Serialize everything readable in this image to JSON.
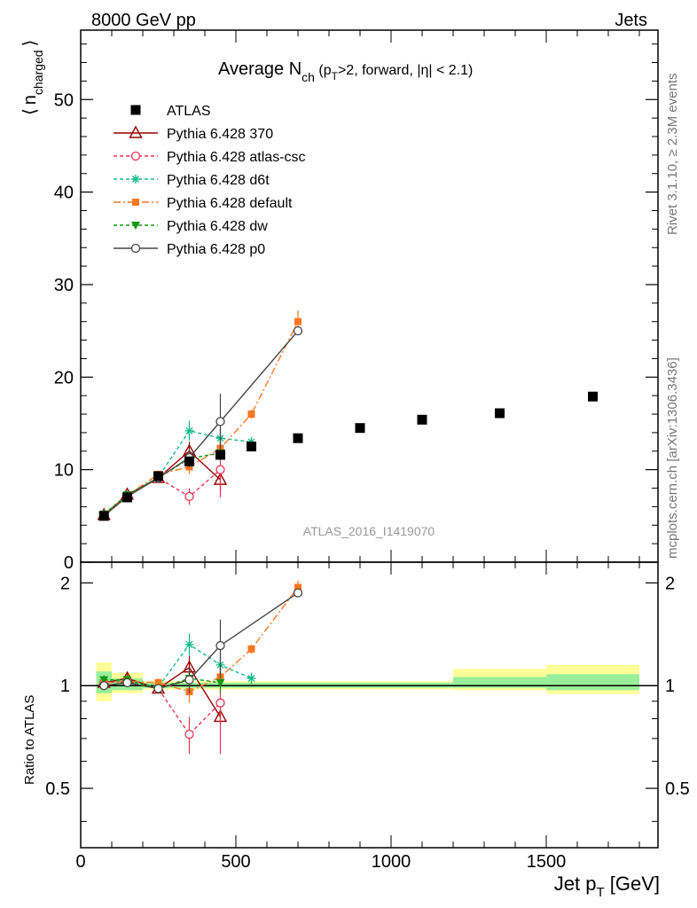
{
  "header": {
    "left": "8000 GeV pp",
    "right": "Jets"
  },
  "side_labels": {
    "rivet": "Rivet 3.1.10, ≥ 2.3M events",
    "mcplots": "mcplots.cern.ch [arXiv:1306.3436]"
  },
  "watermark": "ATLAS_2016_I1419070",
  "chart_data": [
    {
      "type": "scatter",
      "panel": "main",
      "title": "Average N_ch (p_T>2, forward, |η| < 2.1)",
      "title_parts": {
        "a": "Average N",
        "sub_ch": "ch",
        "b": " (p",
        "sub_T": "T",
        "c": ">2, forward, |η| < 2.1)"
      },
      "ylabel": "⟨ n_charged ⟩",
      "ylabel_parts": {
        "open": "⟨",
        "n": "n",
        "sub": "charged",
        "close": "⟩"
      },
      "xlabel": "Jet p_T [GeV]",
      "xlim": [
        0,
        1860
      ],
      "ylim": [
        0,
        57.5
      ],
      "x_ticks": [
        0,
        500,
        1000,
        1500
      ],
      "y_ticks": [
        0,
        10,
        20,
        30,
        40,
        50
      ],
      "legend_position": "top-left",
      "data": {
        "name": "ATLAS",
        "x": [
          75,
          150,
          250,
          350,
          450,
          550,
          700,
          900,
          1100,
          1350,
          1650
        ],
        "y": [
          5.0,
          7.0,
          9.3,
          10.9,
          11.6,
          12.5,
          13.4,
          14.5,
          15.4,
          16.1,
          17.9
        ],
        "color": "#000000"
      },
      "series": [
        {
          "name": "Pythia 6.428 370",
          "color": "#990000",
          "dash": "",
          "marker": "triangle-open",
          "x": [
            75,
            150,
            250,
            350,
            450
          ],
          "y": [
            5.1,
            7.3,
            9.1,
            12.0,
            8.9
          ],
          "err": [
            0.2,
            0.2,
            0.3,
            1.0,
            1.2
          ]
        },
        {
          "name": "Pythia 6.428 atlas-csc",
          "color": "#ee3355",
          "dash": "4,3",
          "marker": "circle-open",
          "x": [
            75,
            150,
            250,
            350,
            450
          ],
          "y": [
            5.1,
            7.1,
            9.1,
            7.1,
            10.0
          ],
          "err": [
            0.2,
            0.2,
            0.3,
            0.9,
            3.0
          ]
        },
        {
          "name": "Pythia 6.428 d6t",
          "color": "#11bb88",
          "dash": "4,3",
          "marker": "star",
          "x": [
            75,
            150,
            250,
            350,
            450,
            550
          ],
          "y": [
            5.2,
            7.2,
            9.2,
            14.2,
            13.4,
            13.0
          ],
          "err": [
            0.2,
            0.2,
            0.3,
            1.1,
            1.0,
            0.5
          ]
        },
        {
          "name": "Pythia 6.428 default",
          "color": "#ff7722",
          "dash": "8,3,2,3",
          "marker": "square",
          "x": [
            75,
            150,
            250,
            350,
            450,
            550,
            700
          ],
          "y": [
            5.1,
            7.2,
            9.5,
            10.3,
            12.3,
            16.0,
            26.0
          ],
          "err": [
            0.2,
            0.2,
            0.3,
            0.8,
            0.8,
            0.5,
            1.2
          ]
        },
        {
          "name": "Pythia 6.428 dw",
          "color": "#119911",
          "dash": "4,3",
          "marker": "triangle-down",
          "x": [
            75,
            150,
            250,
            350,
            450
          ],
          "y": [
            5.2,
            7.3,
            9.1,
            11.2,
            11.8
          ],
          "err": [
            0.2,
            0.2,
            0.3,
            0.8,
            0.8
          ]
        },
        {
          "name": "Pythia 6.428 p0",
          "color": "#444444",
          "dash": "",
          "marker": "circle-open",
          "x": [
            75,
            150,
            250,
            350,
            450,
            700
          ],
          "y": [
            5.0,
            7.1,
            9.1,
            11.3,
            15.2,
            25.0
          ],
          "err": [
            0.2,
            0.2,
            0.3,
            1.0,
            3.0,
            0.4
          ]
        }
      ]
    },
    {
      "type": "scatter",
      "panel": "ratio",
      "ylabel": "Ratio to ATLAS",
      "xlabel": "Jet p_T [GeV]",
      "xlim": [
        0,
        1860
      ],
      "ylim": [
        0.335,
        2.3
      ],
      "y_ticks": [
        0.5,
        1,
        2
      ],
      "y_tick_labels": [
        "0.5",
        "1",
        "2"
      ],
      "x_ticks": [
        0,
        500,
        1000,
        1500
      ],
      "x_tick_labels": [
        "0",
        "500",
        "1000",
        "1500"
      ],
      "uncertainty_bands": [
        {
          "x0": 50,
          "x1": 100,
          "yellow": [
            0.9,
            1.17
          ],
          "green": [
            0.95,
            1.1
          ]
        },
        {
          "x0": 100,
          "x1": 200,
          "yellow": [
            0.95,
            1.09
          ],
          "green": [
            0.97,
            1.05
          ]
        },
        {
          "x0": 200,
          "x1": 1200,
          "yellow": [
            0.975,
            1.03
          ],
          "green": [
            0.985,
            1.02
          ]
        },
        {
          "x0": 1200,
          "x1": 1500,
          "yellow": [
            0.97,
            1.12
          ],
          "green": [
            0.985,
            1.06
          ]
        },
        {
          "x0": 1500,
          "x1": 1800,
          "yellow": [
            0.945,
            1.15
          ],
          "green": [
            0.97,
            1.08
          ]
        }
      ],
      "series": [
        {
          "name": "Pythia 6.428 370",
          "x": [
            75,
            150,
            250,
            350,
            450
          ],
          "y": [
            1.02,
            1.05,
            0.98,
            1.13,
            0.81
          ],
          "err": [
            0.03,
            0.03,
            0.03,
            0.09,
            0.04
          ]
        },
        {
          "name": "Pythia 6.428 atlas-csc",
          "x": [
            75,
            150,
            250,
            350,
            450
          ],
          "y": [
            1.02,
            1.03,
            0.98,
            0.72,
            0.89
          ],
          "err": [
            0.03,
            0.03,
            0.03,
            0.09,
            0.26
          ]
        },
        {
          "name": "Pythia 6.428 d6t",
          "x": [
            75,
            150,
            250,
            350,
            450,
            550
          ],
          "y": [
            1.04,
            1.03,
            0.99,
            1.32,
            1.15,
            1.05
          ],
          "err": [
            0.03,
            0.03,
            0.03,
            0.1,
            0.08,
            0.04
          ]
        },
        {
          "name": "Pythia 6.428 default",
          "x": [
            75,
            150,
            250,
            350,
            450,
            550,
            700
          ],
          "y": [
            1.02,
            1.03,
            1.02,
            0.96,
            1.06,
            1.28,
            1.94
          ],
          "err": [
            0.03,
            0.03,
            0.03,
            0.07,
            0.07,
            0.04,
            0.09
          ]
        },
        {
          "name": "Pythia 6.428 dw",
          "x": [
            75,
            150,
            250,
            350,
            450
          ],
          "y": [
            1.04,
            1.04,
            0.98,
            1.05,
            1.02
          ],
          "err": [
            0.03,
            0.03,
            0.03,
            0.07,
            0.07
          ]
        },
        {
          "name": "Pythia 6.428 p0",
          "x": [
            75,
            150,
            250,
            350,
            450,
            700
          ],
          "y": [
            1.0,
            1.02,
            0.98,
            1.04,
            1.31,
            1.87
          ],
          "err": [
            0.03,
            0.03,
            0.03,
            0.09,
            0.25,
            0.03
          ]
        }
      ]
    }
  ]
}
